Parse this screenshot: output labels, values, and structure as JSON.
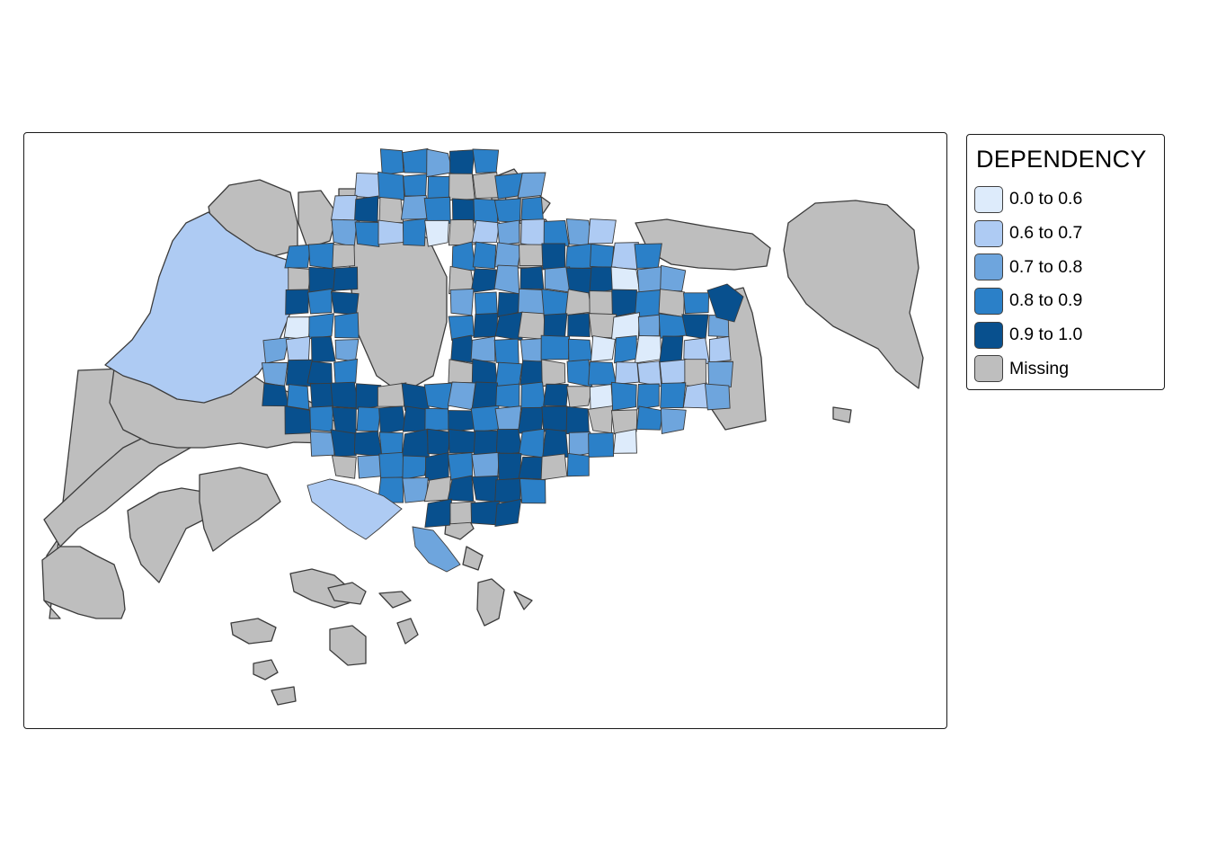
{
  "legend": {
    "title": "DEPENDENCY",
    "classes": [
      {
        "label": "0.0 to 0.6",
        "color": "#ddebfb"
      },
      {
        "label": "0.6 to 0.7",
        "color": "#aecbf3"
      },
      {
        "label": "0.7 to 0.8",
        "color": "#6ea5dd"
      },
      {
        "label": "0.8 to 0.9",
        "color": "#2b80c8"
      },
      {
        "label": "0.9 to 1.0",
        "color": "#08508e"
      },
      {
        "label": "Missing",
        "color": "#bebebe"
      }
    ]
  },
  "map": {
    "border_color": "#3c3c3c",
    "background": "#ffffff"
  }
}
